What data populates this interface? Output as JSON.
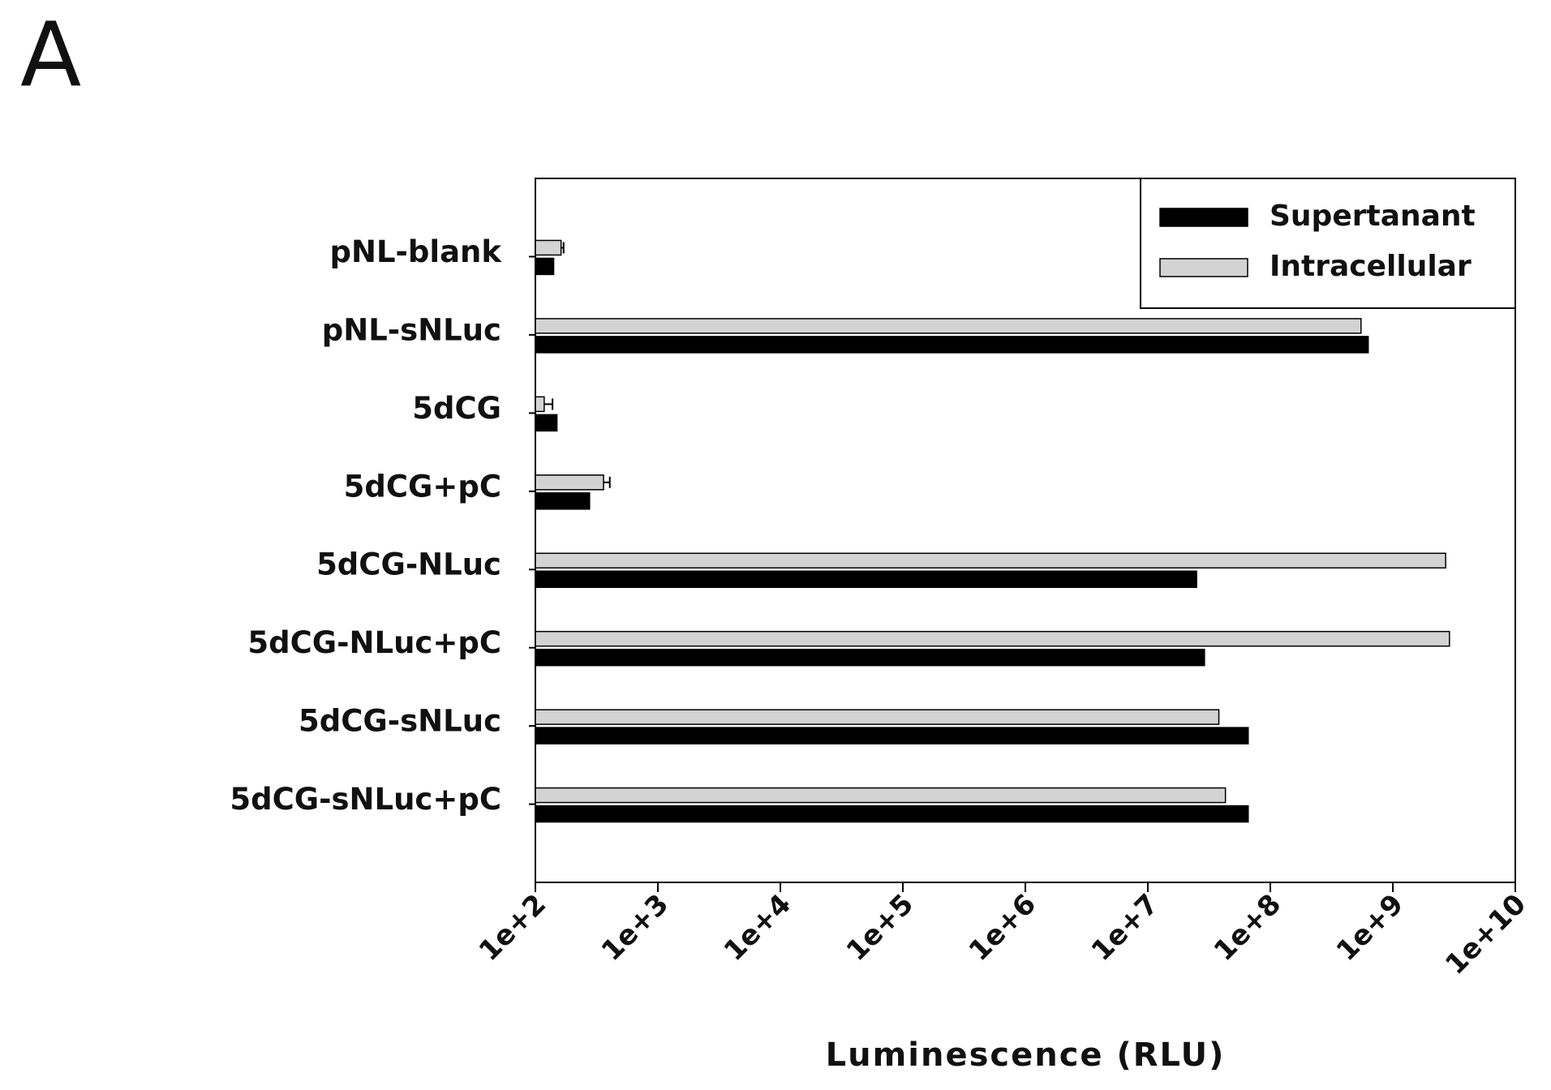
{
  "panel_label": "A",
  "chart_data": {
    "type": "barh",
    "x_label": "Luminescence (RLU)",
    "categories": [
      "pNL-blank",
      "pNL-sNLuc",
      "5dCG",
      "5dCG+pC",
      "5dCG-NLuc",
      "5dCG-NLuc+pC",
      "5dCG-sNLuc",
      "5dCG-sNLuc+pC"
    ],
    "series": [
      {
        "name": "Supertanant",
        "color": "#000000",
        "values": [
          141,
          630000000,
          150,
          277,
          25000000,
          29000000,
          66000000,
          66000000
        ]
      },
      {
        "name": "Intracellular",
        "color": "#d3d3d3",
        "values": [
          162,
          550000000,
          118,
          360,
          2700000000,
          2900000000,
          38000000,
          43000000
        ],
        "errors": [
          8,
          null,
          20,
          45,
          null,
          null,
          null,
          null
        ]
      }
    ],
    "xscale": "log",
    "xlim": [
      100,
      10000000000
    ],
    "xticks": [
      {
        "value": 100,
        "label": "1e+2"
      },
      {
        "value": 1000,
        "label": "1e+3"
      },
      {
        "value": 10000,
        "label": "1e+4"
      },
      {
        "value": 100000,
        "label": "1e+5"
      },
      {
        "value": 1000000,
        "label": "1e+6"
      },
      {
        "value": 10000000,
        "label": "1e+7"
      },
      {
        "value": 100000000,
        "label": "1e+8"
      },
      {
        "value": 1000000000,
        "label": "1e+9"
      },
      {
        "value": 10000000000,
        "label": "1e+10"
      }
    ],
    "legend": "upper right"
  }
}
